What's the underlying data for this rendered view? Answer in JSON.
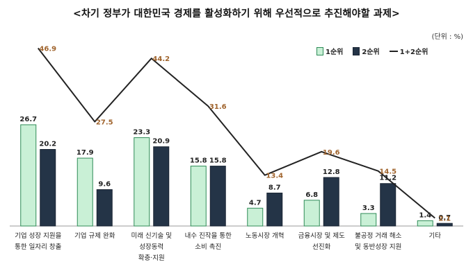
{
  "chart_data": {
    "type": "bar",
    "title": "<차기 정부가 대한민국 경제를 활성화하기 위해 우선적으로 추진해야할 과제>",
    "unit": "(단위 : %)",
    "categories": [
      [
        "기업 성장 지원을",
        "통한 일자리 창출"
      ],
      [
        "기업 규제 완화"
      ],
      [
        "미래 신기술 및",
        "성장동력",
        "확충·지원"
      ],
      [
        "내수 진작을 통한",
        "소비 촉진"
      ],
      [
        "노동시장 개혁"
      ],
      [
        "금융시장 및 제도",
        "선진화"
      ],
      [
        "불공정 거래 해소",
        "및 동반성장 지원"
      ],
      [
        "기타"
      ]
    ],
    "series": [
      {
        "name": "1순위",
        "type": "bar",
        "color": "#c9f0d6",
        "stroke": "#2e8b57",
        "values": [
          26.7,
          17.9,
          23.3,
          15.8,
          4.7,
          6.8,
          3.3,
          1.4
        ]
      },
      {
        "name": "2순위",
        "type": "bar",
        "color": "#243447",
        "stroke": "#1a2533",
        "values": [
          20.2,
          9.6,
          20.9,
          15.8,
          8.7,
          12.8,
          11.2,
          0.7
        ]
      },
      {
        "name": "1+2순위",
        "type": "line",
        "color": "#222222",
        "label_color": "#a0642d",
        "values": [
          46.9,
          27.5,
          44.2,
          31.6,
          13.4,
          19.6,
          14.5,
          2.1
        ]
      }
    ],
    "ylim": [
      0,
      50
    ],
    "grid": false,
    "legend": "top-right"
  }
}
